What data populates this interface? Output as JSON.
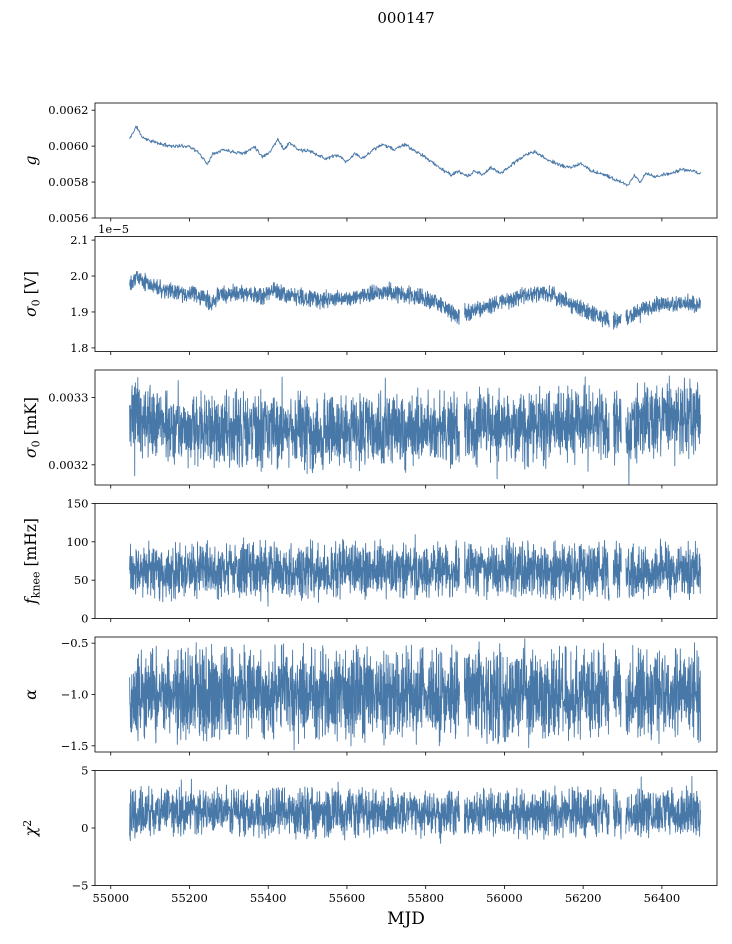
{
  "figure": {
    "title": "000147",
    "xlabel": "MJD",
    "line_color": "#4878a8",
    "axis_color": "#000000",
    "background": "#ffffff"
  },
  "chart_data": {
    "type": "line",
    "title": "000147",
    "xlabel": "MJD",
    "legend": "none",
    "grid": false,
    "x_axis": {
      "label": "MJD",
      "lim": [
        54960,
        56540
      ],
      "ticks": [
        55000,
        55200,
        55400,
        55600,
        55800,
        56000,
        56200,
        56400
      ],
      "tick_labels": [
        "55000",
        "55200",
        "55400",
        "55600",
        "55800",
        "56000",
        "56200",
        "56400"
      ]
    },
    "panels": [
      {
        "id": "g",
        "ylabel_parts": [
          {
            "t": "g",
            "italic": true
          }
        ],
        "ylabel_text": "g",
        "offset_text": null,
        "ylim": [
          0.0056,
          0.00624
        ],
        "yticks": [
          {
            "v": 0.0056,
            "label": "0.0056"
          },
          {
            "v": 0.0058,
            "label": "0.0058"
          },
          {
            "v": 0.006,
            "label": "0.0060"
          },
          {
            "v": 0.0062,
            "label": "0.0062"
          }
        ],
        "series": {
          "seed": 11,
          "n": 1200,
          "x_range": [
            55048,
            56498
          ],
          "noise": 1.2e-05,
          "spike_p": 0.0,
          "spike_mult": 1.0,
          "gaps": [],
          "trend": [
            [
              55048,
              0.00604
            ],
            [
              55065,
              0.00611
            ],
            [
              55080,
              0.00605
            ],
            [
              55100,
              0.00603
            ],
            [
              55130,
              0.00601
            ],
            [
              55160,
              0.006
            ],
            [
              55200,
              0.006
            ],
            [
              55225,
              0.00596
            ],
            [
              55245,
              0.0059
            ],
            [
              55260,
              0.00596
            ],
            [
              55285,
              0.00598
            ],
            [
              55310,
              0.00597
            ],
            [
              55340,
              0.00596
            ],
            [
              55365,
              0.006
            ],
            [
              55385,
              0.00594
            ],
            [
              55405,
              0.00597
            ],
            [
              55425,
              0.00604
            ],
            [
              55440,
              0.00598
            ],
            [
              55455,
              0.00602
            ],
            [
              55475,
              0.00598
            ],
            [
              55510,
              0.00597
            ],
            [
              55545,
              0.00593
            ],
            [
              55575,
              0.00595
            ],
            [
              55600,
              0.00591
            ],
            [
              55620,
              0.00596
            ],
            [
              55640,
              0.00593
            ],
            [
              55665,
              0.00598
            ],
            [
              55695,
              0.00601
            ],
            [
              55720,
              0.00598
            ],
            [
              55745,
              0.00601
            ],
            [
              55775,
              0.00597
            ],
            [
              55805,
              0.00593
            ],
            [
              55835,
              0.00588
            ],
            [
              55865,
              0.00584
            ],
            [
              55885,
              0.00586
            ],
            [
              55905,
              0.00583
            ],
            [
              55925,
              0.00586
            ],
            [
              55945,
              0.00584
            ],
            [
              55965,
              0.00588
            ],
            [
              55990,
              0.00585
            ],
            [
              56015,
              0.00589
            ],
            [
              56045,
              0.00594
            ],
            [
              56075,
              0.00597
            ],
            [
              56105,
              0.00593
            ],
            [
              56135,
              0.0059
            ],
            [
              56165,
              0.00588
            ],
            [
              56195,
              0.0059
            ],
            [
              56225,
              0.00586
            ],
            [
              56255,
              0.00584
            ],
            [
              56285,
              0.00581
            ],
            [
              56315,
              0.00578
            ],
            [
              56330,
              0.00584
            ],
            [
              56345,
              0.0058
            ],
            [
              56360,
              0.00585
            ],
            [
              56380,
              0.00583
            ],
            [
              56400,
              0.00584
            ],
            [
              56425,
              0.00585
            ],
            [
              56450,
              0.00587
            ],
            [
              56475,
              0.00586
            ],
            [
              56498,
              0.00585
            ]
          ]
        }
      },
      {
        "id": "sigma0-v",
        "ylabel_parts": [
          {
            "t": "σ",
            "italic": true
          },
          {
            "t": "0",
            "sub": true
          },
          {
            "t": " [V]"
          }
        ],
        "ylabel_text": "σ0 [V]",
        "offset_text": "1e−5",
        "ylim": [
          1.79,
          2.11
        ],
        "yticks": [
          {
            "v": 1.8,
            "label": "1.8"
          },
          {
            "v": 1.9,
            "label": "1.9"
          },
          {
            "v": 2.0,
            "label": "2.0"
          },
          {
            "v": 2.1,
            "label": "2.1"
          }
        ],
        "series": {
          "seed": 22,
          "n": 2400,
          "x_range": [
            55048,
            56498
          ],
          "noise": 0.028,
          "spike_p": 0.02,
          "spike_mult": 1.5,
          "gaps": [
            [
              55886,
              55898
            ],
            [
              56266,
              56276
            ],
            [
              56297,
              56308
            ]
          ],
          "trend": [
            [
              55048,
              1.985
            ],
            [
              55065,
              2.0
            ],
            [
              55085,
              1.985
            ],
            [
              55110,
              1.97
            ],
            [
              55140,
              1.96
            ],
            [
              55170,
              1.953
            ],
            [
              55200,
              1.95
            ],
            [
              55230,
              1.942
            ],
            [
              55255,
              1.928
            ],
            [
              55275,
              1.945
            ],
            [
              55300,
              1.95
            ],
            [
              55330,
              1.953
            ],
            [
              55360,
              1.948
            ],
            [
              55390,
              1.944
            ],
            [
              55415,
              1.963
            ],
            [
              55435,
              1.95
            ],
            [
              55465,
              1.944
            ],
            [
              55495,
              1.94
            ],
            [
              55525,
              1.934
            ],
            [
              55555,
              1.938
            ],
            [
              55585,
              1.934
            ],
            [
              55615,
              1.94
            ],
            [
              55645,
              1.948
            ],
            [
              55675,
              1.953
            ],
            [
              55705,
              1.958
            ],
            [
              55735,
              1.95
            ],
            [
              55765,
              1.945
            ],
            [
              55795,
              1.94
            ],
            [
              55825,
              1.926
            ],
            [
              55855,
              1.91
            ],
            [
              55885,
              1.89
            ],
            [
              55915,
              1.898
            ],
            [
              55945,
              1.913
            ],
            [
              55975,
              1.922
            ],
            [
              56005,
              1.93
            ],
            [
              56035,
              1.94
            ],
            [
              56065,
              1.95
            ],
            [
              56095,
              1.954
            ],
            [
              56125,
              1.946
            ],
            [
              56155,
              1.93
            ],
            [
              56185,
              1.914
            ],
            [
              56215,
              1.9
            ],
            [
              56245,
              1.886
            ],
            [
              56275,
              1.875
            ],
            [
              56305,
              1.88
            ],
            [
              56335,
              1.898
            ],
            [
              56365,
              1.913
            ],
            [
              56395,
              1.92
            ],
            [
              56425,
              1.924
            ],
            [
              56455,
              1.925
            ],
            [
              56498,
              1.92
            ]
          ]
        }
      },
      {
        "id": "sigma0-mk",
        "ylabel_parts": [
          {
            "t": "σ",
            "italic": true
          },
          {
            "t": "0",
            "sub": true
          },
          {
            "t": " [mK]"
          }
        ],
        "ylabel_text": "σ0 [mK]",
        "offset_text": null,
        "ylim": [
          0.00317,
          0.003341
        ],
        "yticks": [
          {
            "v": 0.0032,
            "label": "0.0032"
          },
          {
            "v": 0.0033,
            "label": "0.0033"
          }
        ],
        "series": {
          "seed": 33,
          "n": 2600,
          "x_range": [
            55048,
            56498
          ],
          "noise": 6.5e-05,
          "spike_p": 0.03,
          "spike_mult": 1.5,
          "gaps": [
            [
              55886,
              55898
            ],
            [
              56266,
              56276
            ],
            [
              56297,
              56308
            ]
          ],
          "trend": [
            [
              55048,
              0.00327
            ],
            [
              55100,
              0.003265
            ],
            [
              55150,
              0.003255
            ],
            [
              55200,
              0.003252
            ],
            [
              55250,
              0.00325
            ],
            [
              55300,
              0.003252
            ],
            [
              55350,
              0.003248
            ],
            [
              55400,
              0.00325
            ],
            [
              55450,
              0.003252
            ],
            [
              55500,
              0.003245
            ],
            [
              55550,
              0.003248
            ],
            [
              55600,
              0.00325
            ],
            [
              55650,
              0.003255
            ],
            [
              55700,
              0.003252
            ],
            [
              55750,
              0.00325
            ],
            [
              55800,
              0.003255
            ],
            [
              55850,
              0.003252
            ],
            [
              55900,
              0.00325
            ],
            [
              55950,
              0.003255
            ],
            [
              56000,
              0.003258
            ],
            [
              56050,
              0.003255
            ],
            [
              56100,
              0.00326
            ],
            [
              56150,
              0.003258
            ],
            [
              56200,
              0.003262
            ],
            [
              56250,
              0.00326
            ],
            [
              56300,
              0.003255
            ],
            [
              56350,
              0.003265
            ],
            [
              56400,
              0.003268
            ],
            [
              56450,
              0.00327
            ],
            [
              56498,
              0.00327
            ]
          ]
        }
      },
      {
        "id": "fknee",
        "ylabel_parts": [
          {
            "t": "f",
            "italic": true
          },
          {
            "t": "knee",
            "sub": true
          },
          {
            "t": " [mHz]"
          }
        ],
        "ylabel_text": "fknee [mHz]",
        "offset_text": null,
        "ylim": [
          0,
          150
        ],
        "yticks": [
          {
            "v": 0,
            "label": "0"
          },
          {
            "v": 50,
            "label": "50"
          },
          {
            "v": 100,
            "label": "100"
          },
          {
            "v": 150,
            "label": "150"
          }
        ],
        "series": {
          "seed": 44,
          "n": 2600,
          "x_range": [
            55048,
            56498
          ],
          "noise": 42,
          "spike_p": 0.02,
          "spike_mult": 1.3,
          "gaps": [
            [
              55886,
              55898
            ],
            [
              56266,
              56276
            ],
            [
              56297,
              56308
            ]
          ],
          "trend": [
            [
              55048,
              63
            ],
            [
              55200,
              61
            ],
            [
              55350,
              65
            ],
            [
              55500,
              62
            ],
            [
              55650,
              63
            ],
            [
              55800,
              62
            ],
            [
              55950,
              64
            ],
            [
              56100,
              63
            ],
            [
              56250,
              62
            ],
            [
              56400,
              65
            ],
            [
              56498,
              63
            ]
          ]
        }
      },
      {
        "id": "alpha",
        "ylabel_parts": [
          {
            "t": "α",
            "italic": true
          }
        ],
        "ylabel_text": "α",
        "offset_text": null,
        "ylim": [
          -1.56,
          -0.44
        ],
        "yticks": [
          {
            "v": -1.5,
            "label": "−1.5"
          },
          {
            "v": -1.0,
            "label": "−1.0"
          },
          {
            "v": -0.5,
            "label": "−0.5"
          }
        ],
        "series": {
          "seed": 55,
          "n": 2600,
          "x_range": [
            55048,
            56498
          ],
          "noise": 0.52,
          "spike_p": 0.02,
          "spike_mult": 1.25,
          "gaps": [
            [
              55886,
              55898
            ],
            [
              56266,
              56276
            ],
            [
              56297,
              56308
            ]
          ],
          "trend": [
            [
              55048,
              -1.0
            ],
            [
              55400,
              -0.99
            ],
            [
              55800,
              -1.0
            ],
            [
              56200,
              -1.0
            ],
            [
              56498,
              -0.99
            ]
          ]
        }
      },
      {
        "id": "chi2",
        "ylabel_parts": [
          {
            "t": "χ",
            "italic": true
          },
          {
            "t": "2",
            "sup": true
          }
        ],
        "ylabel_text": "χ2",
        "offset_text": null,
        "ylim": [
          -5,
          5
        ],
        "yticks": [
          {
            "v": -5,
            "label": "−5"
          },
          {
            "v": 0,
            "label": "0"
          },
          {
            "v": 5,
            "label": "5"
          }
        ],
        "series": {
          "seed": 66,
          "n": 2600,
          "x_range": [
            55048,
            56498
          ],
          "noise": 2.4,
          "spike_p": 0.02,
          "spike_mult": 1.4,
          "gaps": [
            [
              55886,
              55898
            ],
            [
              56266,
              56276
            ],
            [
              56297,
              56308
            ]
          ],
          "trend": [
            [
              55048,
              1.35
            ],
            [
              55300,
              1.45
            ],
            [
              55500,
              1.3
            ],
            [
              55700,
              1.35
            ],
            [
              55900,
              1.3
            ],
            [
              56100,
              1.35
            ],
            [
              56300,
              1.3
            ],
            [
              56498,
              1.35
            ]
          ]
        }
      }
    ]
  }
}
